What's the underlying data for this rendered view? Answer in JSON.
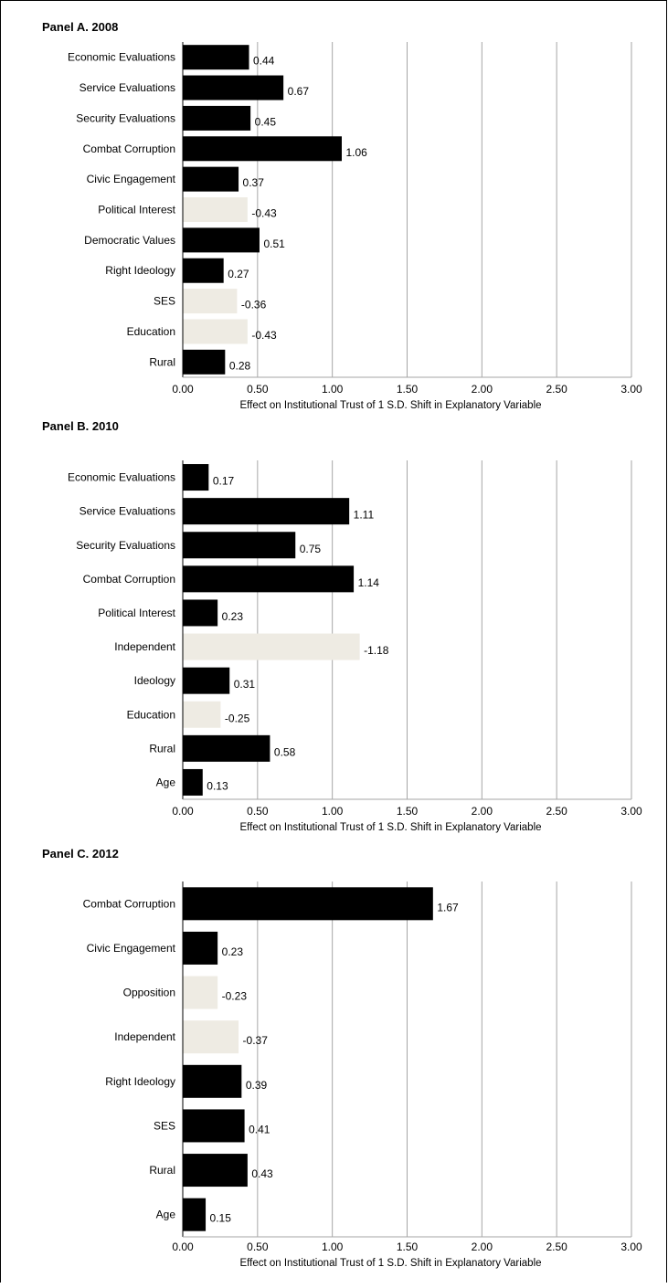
{
  "chart_data": [
    {
      "type": "bar",
      "orientation": "horizontal",
      "title": "Panel A. 2008",
      "xlabel": "Effect on Institutional Trust of 1 S.D. Shift in Explanatory Variable",
      "xlim": [
        0,
        3
      ],
      "xticks": [
        "0.00",
        "0.50",
        "1.00",
        "1.50",
        "2.00",
        "2.50",
        "3.00"
      ],
      "grid": true,
      "categories": [
        "Economic Evaluations",
        "Service Evaluations",
        "Security Evaluations",
        "Combat Corruption",
        "Civic Engagement",
        "Political Interest",
        "Democratic Values",
        "Right Ideology",
        "SES",
        "Education",
        "Rural"
      ],
      "values": [
        0.44,
        0.67,
        0.45,
        1.06,
        0.37,
        0.43,
        0.51,
        0.27,
        0.36,
        0.43,
        0.28
      ],
      "labels": [
        "0.44",
        "0.67",
        "0.45",
        "1.06",
        "0.37",
        "-0.43",
        "0.51",
        "0.27",
        "-0.36",
        "-0.43",
        "0.28"
      ],
      "negative": [
        false,
        false,
        false,
        false,
        false,
        true,
        false,
        false,
        true,
        true,
        false
      ]
    },
    {
      "type": "bar",
      "orientation": "horizontal",
      "title": "Panel B. 2010",
      "xlabel": "Effect on Institutional Trust of 1 S.D. Shift in Explanatory Variable",
      "xlim": [
        0,
        3
      ],
      "xticks": [
        "0.00",
        "0.50",
        "1.00",
        "1.50",
        "2.00",
        "2.50",
        "3.00"
      ],
      "grid": true,
      "categories": [
        "Economic Evaluations",
        "Service Evaluations",
        "Security Evaluations",
        "Combat Corruption",
        "Political Interest",
        "Independent",
        "Ideology",
        "Education",
        "Rural",
        "Age"
      ],
      "values": [
        0.17,
        1.11,
        0.75,
        1.14,
        0.23,
        1.18,
        0.31,
        0.25,
        0.58,
        0.13
      ],
      "labels": [
        "0.17",
        "1.11",
        "0.75",
        "1.14",
        "0.23",
        "-1.18",
        "0.31",
        "-0.25",
        "0.58",
        "0.13"
      ],
      "negative": [
        false,
        false,
        false,
        false,
        false,
        true,
        false,
        true,
        false,
        false
      ]
    },
    {
      "type": "bar",
      "orientation": "horizontal",
      "title": "Panel C. 2012",
      "xlabel": "Effect on Institutional Trust of 1 S.D. Shift in Explanatory Variable",
      "xlim": [
        0,
        3
      ],
      "xticks": [
        "0.00",
        "0.50",
        "1.00",
        "1.50",
        "2.00",
        "2.50",
        "3.00"
      ],
      "grid": true,
      "categories": [
        "Combat Corruption",
        "Civic Engagement",
        "Opposition",
        "Independent",
        "Right Ideology",
        "SES",
        "Rural",
        "Age"
      ],
      "values": [
        1.67,
        0.23,
        0.23,
        0.37,
        0.39,
        0.41,
        0.43,
        0.15
      ],
      "labels": [
        "1.67",
        "0.23",
        "-0.23",
        "-0.37",
        "0.39",
        "0.41",
        "0.43",
        "0.15"
      ],
      "negative": [
        false,
        false,
        true,
        true,
        false,
        false,
        false,
        false
      ]
    }
  ],
  "colors": {
    "positive": "#000000",
    "negative": "#eeebe3",
    "grid": "#a6a6a6"
  }
}
